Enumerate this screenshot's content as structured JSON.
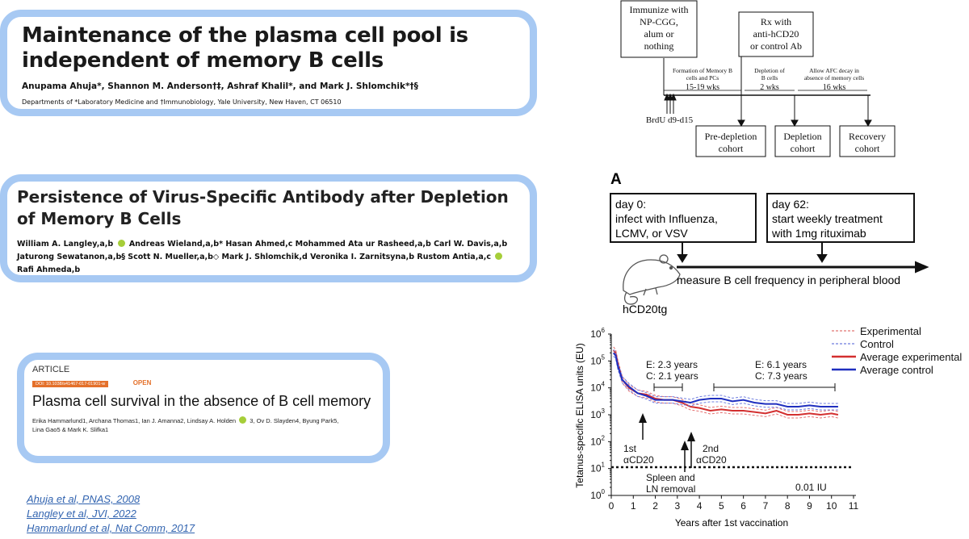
{
  "paper1": {
    "title": "Maintenance of the plasma cell pool is independent of memory B cells",
    "authors": "Anupama Ahuja*, Shannon M. Anderson†‡, Ashraf Khalil*, and Mark J. Shlomchik*†§",
    "affiliation": "Departments of *Laboratory Medicine and †Immunobiology, Yale University, New Haven, CT 06510"
  },
  "paper2": {
    "title": "Persistence of Virus-Specific Antibody after Depletion of Memory B Cells",
    "authors_line1_a": "William A. Langley,a,b",
    "authors_line1_b": "Andreas Wieland,a,b* Hasan Ahmed,c Mohammed Ata ur Rasheed,a,b Carl W. Davis,a,b",
    "authors_line2_a": "Jaturong Sewatanon,a,b§ Scott N. Mueller,a,b◇ Mark J. Shlomchik,d Veronika I. Zarnitsyna,b Rustom Antia,a,c",
    "authors_line2_b": "Rafi Ahmeda,b"
  },
  "paper3": {
    "label": "ARTICLE",
    "doi": "DOI: 10.1038/s41467-017-01901-w",
    "open": "OPEN",
    "title": "Plasma cell survival in the absence of B cell memory",
    "authors_a": "Erika Hammarlund1, Archana Thomas1, Ian J. Amanna2, Lindsay A. Holden",
    "authors_b": "3, Ov D. Slayden4, Byung Park5,",
    "authors_c": "Lina Gao5 & Mark K. Slifka1"
  },
  "references": [
    "Ahuja et al, PNAS, 2008",
    "Langley et al, JVI, 2022",
    "Hammarlund et al, Nat Comm, 2017"
  ],
  "timeline1": {
    "box_immunize": [
      "Immunize with",
      "NP-CGG,",
      "alum or",
      "nothing"
    ],
    "box_rx": [
      "Rx with",
      "anti-hCD20",
      "or control Ab"
    ],
    "phase1": [
      "Formation of Memory B",
      "cells and PCs"
    ],
    "phase1_dur": "15-19 wks",
    "phase2": [
      "Depletion of",
      "B cells"
    ],
    "phase2_dur": "2 wks",
    "phase3": [
      "Allow AFC decay in",
      "absence of memory cells"
    ],
    "phase3_dur": "16 wks",
    "brdu": "BrdU d9-d15",
    "cohorts": [
      [
        "Pre-depletion",
        "cohort"
      ],
      [
        "Depletion",
        "cohort"
      ],
      [
        "Recovery",
        "cohort"
      ]
    ]
  },
  "timeline2": {
    "panel_label": "A",
    "box1": [
      "day 0:",
      "infect with Influenza,",
      "LCMV, or VSV"
    ],
    "box2": [
      "day 62:",
      "start weekly treatment",
      "with 1mg rituximab"
    ],
    "measure": "measure B cell frequency in peripheral blood",
    "mouse": "hCD20tg"
  },
  "colors": {
    "card_border": "#a7c9f3",
    "red": "#d32f2f",
    "blue": "#1f2fbf",
    "link": "#3264b0",
    "open": "#e4702a"
  },
  "chart_data": {
    "type": "line",
    "ylabel": "Tetanus-specific ELISA units (EU)",
    "xlabel": "Years after 1st vaccination",
    "x_ticks": [
      "0",
      "1",
      "2",
      "3",
      "4",
      "5",
      "6",
      "7",
      "8",
      "9",
      "10",
      "11"
    ],
    "y_ticks": [
      "10^0",
      "10^1",
      "10^2",
      "10^3",
      "10^4",
      "10^5",
      "10^6"
    ],
    "xlim": [
      0,
      11
    ],
    "ylim_log10": [
      0,
      6
    ],
    "legend": [
      "Experimental",
      "Control",
      "Average experimental",
      "Average control"
    ],
    "x": [
      0.1,
      0.2,
      0.3,
      0.5,
      0.8,
      1.2,
      1.6,
      2.0,
      2.4,
      2.8,
      3.2,
      3.6,
      4.0,
      4.5,
      5.0,
      5.5,
      6.0,
      6.5,
      7.0,
      7.5,
      8.0,
      8.5,
      9.0,
      9.5,
      10.0,
      10.3
    ],
    "series": [
      {
        "name": "Average experimental",
        "values": [
          5.4,
          5.3,
          4.9,
          4.3,
          4.0,
          3.8,
          3.75,
          3.6,
          3.55,
          3.55,
          3.45,
          3.3,
          3.25,
          3.15,
          3.2,
          3.15,
          3.15,
          3.1,
          3.05,
          3.15,
          3.0,
          3.0,
          3.05,
          3.0,
          3.05,
          3.0
        ]
      },
      {
        "name": "Average control",
        "values": [
          5.3,
          5.2,
          4.8,
          4.3,
          4.05,
          3.8,
          3.7,
          3.55,
          3.55,
          3.55,
          3.5,
          3.45,
          3.55,
          3.6,
          3.6,
          3.5,
          3.55,
          3.45,
          3.4,
          3.4,
          3.3,
          3.3,
          3.35,
          3.3,
          3.3,
          3.3
        ]
      }
    ],
    "detection_limit": {
      "value_log10": 1.05,
      "label": "0.01 IU"
    },
    "annotations": [
      {
        "text": [
          "E: 2.3 years",
          "C: 2.1 years"
        ]
      },
      {
        "text": [
          "E: 6.1 years",
          "C: 7.3 years"
        ]
      },
      {
        "text": [
          "1st",
          "αCD20"
        ]
      },
      {
        "text": [
          "2nd",
          "αCD20"
        ]
      },
      {
        "text": [
          "Spleen and",
          "LN removal"
        ]
      }
    ]
  }
}
